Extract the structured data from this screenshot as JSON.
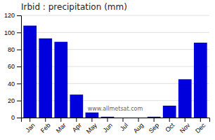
{
  "chart_data": {
    "type": "bar",
    "title": "Irbid : precipitation (mm)",
    "categories": [
      "Jan",
      "Feb",
      "Mar",
      "Apr",
      "May",
      "Jun",
      "Jul",
      "Aug",
      "Sep",
      "Oct",
      "Nov",
      "Dec"
    ],
    "values": [
      108,
      93,
      89,
      27,
      6,
      1,
      0,
      0,
      1,
      14,
      45,
      88
    ],
    "color": "#0000DD",
    "ylim": [
      0,
      120
    ],
    "yticks": [
      0,
      20,
      40,
      60,
      80,
      100,
      120
    ],
    "grid": true,
    "annotations": [
      "www.allmetsat.com"
    ]
  }
}
